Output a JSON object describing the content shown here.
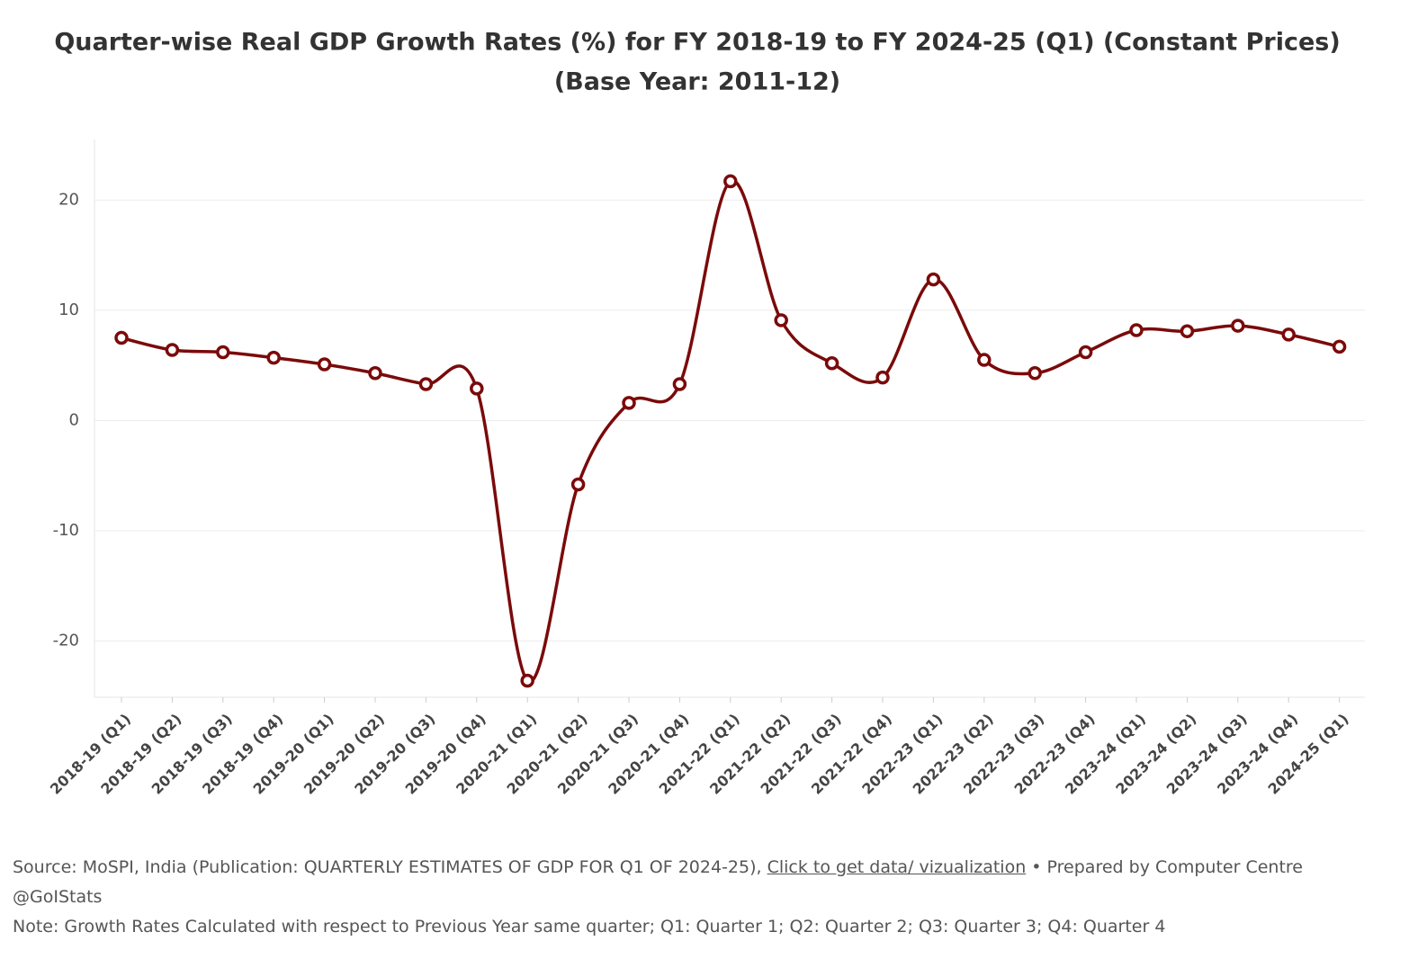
{
  "chart_data": {
    "type": "line",
    "title": "Quarter-wise Real GDP Growth Rates (%) for FY 2018-19 to FY 2024-25 (Q1) (Constant Prices)",
    "subtitle": "(Base Year: 2011-12)",
    "categories": [
      "2018-19 (Q1)",
      "2018-19 (Q2)",
      "2018-19 (Q3)",
      "2018-19 (Q4)",
      "2019-20 (Q1)",
      "2019-20 (Q2)",
      "2019-20 (Q3)",
      "2019-20 (Q4)",
      "2020-21 (Q1)",
      "2020-21 (Q2)",
      "2020-21 (Q3)",
      "2020-21 (Q4)",
      "2021-22 (Q1)",
      "2021-22 (Q2)",
      "2021-22 (Q3)",
      "2021-22 (Q4)",
      "2022-23 (Q1)",
      "2022-23 (Q2)",
      "2022-23 (Q3)",
      "2022-23 (Q4)",
      "2023-24 (Q1)",
      "2023-24 (Q2)",
      "2023-24 (Q3)",
      "2023-24 (Q4)",
      "2024-25 (Q1)"
    ],
    "values": [
      7.5,
      6.4,
      6.2,
      5.7,
      5.1,
      4.3,
      3.3,
      2.9,
      -23.6,
      -5.8,
      1.6,
      3.3,
      21.7,
      9.1,
      5.2,
      3.9,
      12.8,
      5.5,
      4.3,
      6.2,
      8.2,
      8.1,
      8.6,
      7.8,
      6.7
    ],
    "color": "#7b0a0a",
    "ylim": [
      -25.1,
      25.5
    ],
    "yticks": [
      -20,
      -10,
      0,
      10,
      20
    ],
    "grid": true
  },
  "footer": {
    "source": "Source: MoSPI, India (Publication: QUARTERLY ESTIMATES OF GDP FOR Q1 OF 2024-25), ",
    "link": "Click to get data/ vizualization",
    "prepared": " • Prepared by Computer Centre @GoIStats",
    "note": "Note: Growth Rates Calculated with respect to Previous Year same quarter; Q1: Quarter 1; Q2: Quarter 2; Q3: Quarter 3; Q4: Quarter 4"
  }
}
